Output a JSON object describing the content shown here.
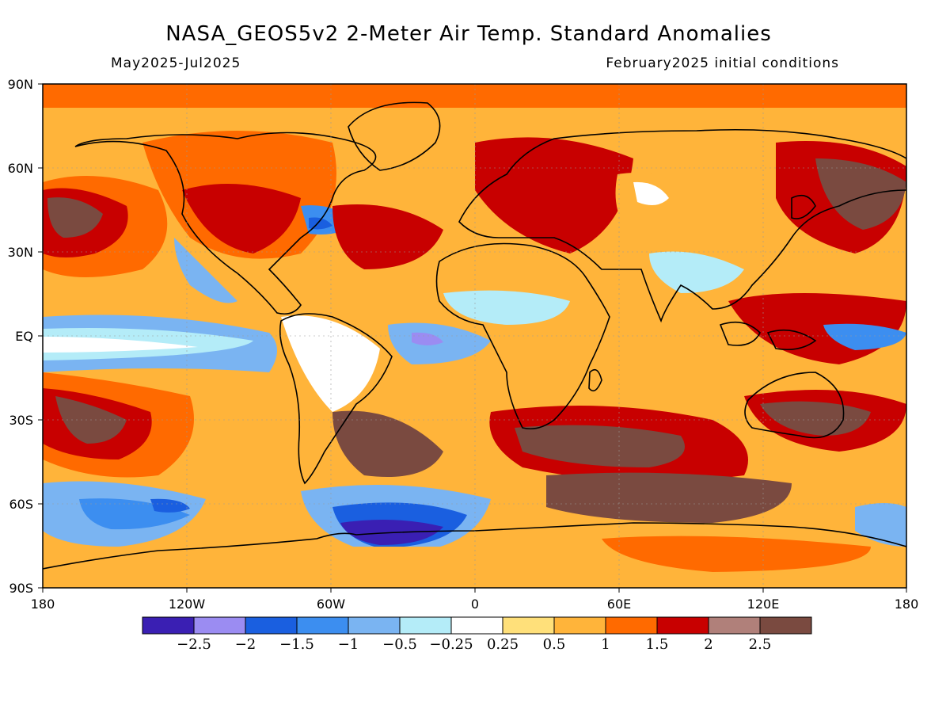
{
  "title": "NASA_GEOS5v2 2-Meter Air Temp. Standard Anomalies",
  "period": "May2025-Jul2025",
  "initial_conditions": "February2025 initial conditions",
  "lat_labels": [
    "90N",
    "60N",
    "30N",
    "EQ",
    "30S",
    "60S",
    "90S"
  ],
  "lon_labels": [
    "180",
    "120W",
    "60W",
    "0",
    "60E",
    "120E",
    "180"
  ],
  "colorbar": {
    "colors": [
      "#3a1fb3",
      "#9b8cf2",
      "#1a5fe0",
      "#3c8ef0",
      "#7ab4f2",
      "#b4ecf8",
      "#ffffff",
      "#ffe07a",
      "#ffb43a",
      "#ff6a00",
      "#c80000",
      "#b0807a",
      "#7a4a40"
    ],
    "labels": [
      "-2.5",
      "-2",
      "-1.5",
      "-1",
      "-0.5",
      "-0.25",
      "0.25",
      "0.5",
      "1",
      "1.5",
      "2",
      "2.5"
    ]
  },
  "land_color": "#000000"
}
